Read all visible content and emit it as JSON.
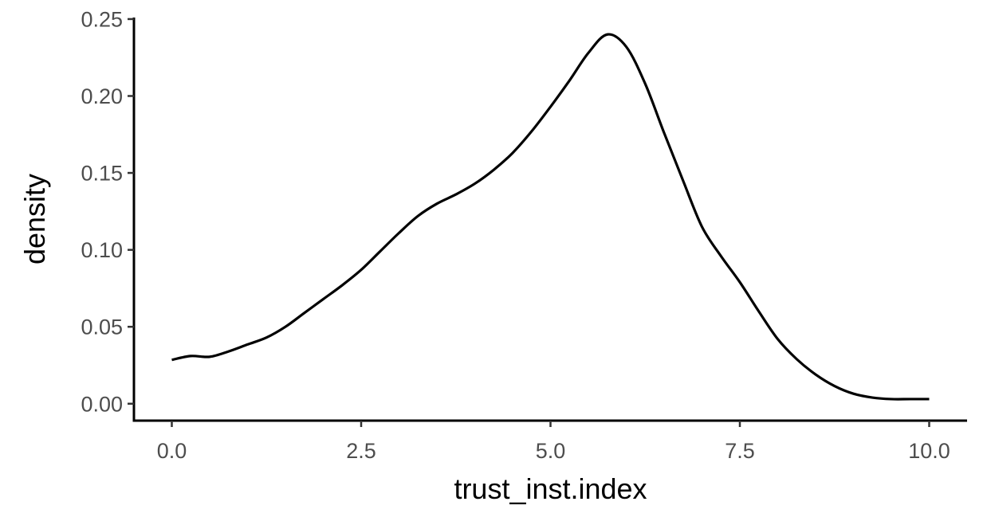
{
  "chart_data": {
    "type": "line",
    "title": "",
    "xlabel": "trust_inst.index",
    "ylabel": "density",
    "xlim": [
      -0.5,
      10.5
    ],
    "ylim": [
      -0.011,
      0.251
    ],
    "x_ticks": [
      0.0,
      2.5,
      5.0,
      7.5,
      10.0
    ],
    "x_tick_labels": [
      "0.0",
      "2.5",
      "5.0",
      "7.5",
      "10.0"
    ],
    "y_ticks": [
      0.0,
      0.05,
      0.1,
      0.15,
      0.2,
      0.25
    ],
    "y_tick_labels": [
      "0.00",
      "0.05",
      "0.10",
      "0.15",
      "0.20",
      "0.25"
    ],
    "grid": false,
    "legend": "none",
    "line_color": "#000000",
    "series": [
      {
        "x": [
          0.0,
          0.25,
          0.5,
          0.75,
          1.0,
          1.25,
          1.5,
          1.75,
          2.0,
          2.25,
          2.5,
          2.75,
          3.0,
          3.25,
          3.5,
          3.75,
          4.0,
          4.25,
          4.5,
          4.75,
          5.0,
          5.25,
          5.5,
          5.75,
          6.0,
          6.25,
          6.5,
          6.75,
          7.0,
          7.25,
          7.5,
          7.75,
          8.0,
          8.25,
          8.5,
          8.75,
          9.0,
          9.25,
          9.5,
          9.75,
          10.0
        ],
        "y": [
          0.0285,
          0.031,
          0.0305,
          0.034,
          0.0385,
          0.043,
          0.05,
          0.059,
          0.068,
          0.077,
          0.087,
          0.099,
          0.111,
          0.122,
          0.13,
          0.136,
          0.143,
          0.152,
          0.163,
          0.177,
          0.193,
          0.21,
          0.228,
          0.24,
          0.232,
          0.208,
          0.176,
          0.145,
          0.115,
          0.096,
          0.079,
          0.06,
          0.042,
          0.029,
          0.019,
          0.0115,
          0.0065,
          0.004,
          0.003,
          0.003,
          0.003
        ]
      }
    ]
  }
}
